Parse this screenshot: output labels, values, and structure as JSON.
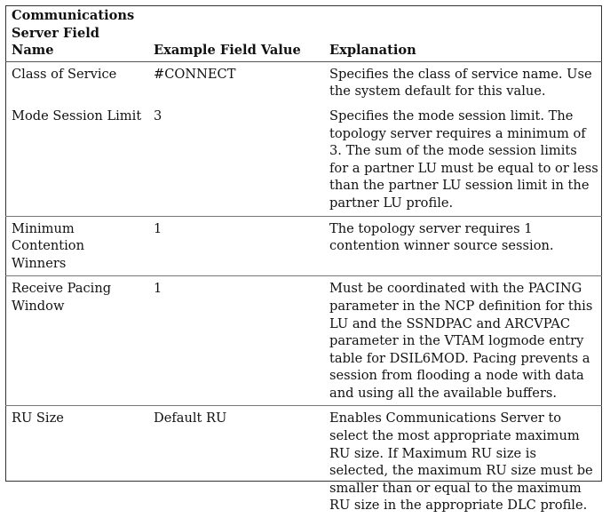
{
  "table": {
    "headers": {
      "field_name": "Communications Server Field Name",
      "example_value": "Example Field Value",
      "explanation": "Explanation"
    },
    "rows": [
      {
        "field_name": "Class of Service",
        "example_value": "#CONNECT",
        "explanation": "Specifies the class of service name. Use the system default for this value."
      },
      {
        "field_name": "Mode Session Limit",
        "example_value": "3",
        "explanation": "Specifies the mode session limit. The topology server requires a minimum of 3. The sum of the mode session limits for a partner LU must be equal to or less than the partner LU session limit in the partner LU profile."
      },
      {
        "field_name": "Minimum Contention Winners",
        "example_value": "1",
        "explanation": "The topology server requires 1 contention winner source session."
      },
      {
        "field_name": "Receive Pacing Window",
        "example_value": "1",
        "explanation": "Must be coordinated with the PACING parameter in the NCP definition for this LU and the SSNDPAC and ARCVPAC parameter in the VTAM logmode entry table for DSIL6MOD. Pacing prevents a session from flooding a node with data and using all the available buffers."
      },
      {
        "field_name": "RU Size",
        "example_value": "Default RU",
        "explanation": "Enables Communications Server to select the most appropriate maximum RU size. If Maximum RU size is selected, the maximum RU size must be smaller than or equal to the maximum RU size in the appropriate DLC profile."
      }
    ]
  }
}
